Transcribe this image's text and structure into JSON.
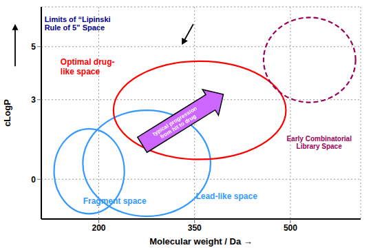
{
  "chart_data": {
    "type": "ellipse",
    "xlabel": "Molecular weight / Da   →",
    "ylabel": "cLogP",
    "xlim": [
      110,
      610
    ],
    "ylim": [
      -1.5,
      6.5
    ],
    "xticks": [
      200,
      350,
      500
    ],
    "yticks": [
      0,
      3,
      5
    ],
    "grid": true,
    "ellipses": [
      {
        "cx": 185,
        "cy": 0.3,
        "rx": 55,
        "ry": 1.6,
        "angle": 0,
        "color": "#3399ff",
        "line_style": "solid"
      },
      {
        "cx": 275,
        "cy": 0.6,
        "rx": 100,
        "ry": 2.0,
        "angle": 0,
        "color": "#3399ff",
        "line_style": "solid"
      },
      {
        "cx": 358,
        "cy": 2.6,
        "rx": 135,
        "ry": 1.85,
        "angle": 0,
        "color": "red",
        "line_style": "solid"
      },
      {
        "cx": 530,
        "cy": 4.5,
        "rx": 72,
        "ry": 1.6,
        "angle": 0,
        "color": "#990055",
        "line_style": "dashed"
      }
    ],
    "arrows": [
      {
        "type": "block_arrow",
        "x_start": 268,
        "y_start": 1.3,
        "x_end": 395,
        "y_end": 3.2,
        "color": "#cc66ff",
        "text": "typical progression\nfrom hit to drug"
      },
      {
        "type": "arrow",
        "x_start": 348,
        "y_start": 5.85,
        "x_end": 330,
        "y_end": 5.07,
        "color": "black"
      }
    ],
    "annotations": [
      {
        "text": "Limits of “Lipinski\nRule of 5” Space",
        "color": "#00008b"
      },
      {
        "text": "Optimal drug-\nlike space",
        "color": "red"
      },
      {
        "text": "Fragment space",
        "color": "#3399ff"
      },
      {
        "text": "Lead-like space",
        "color": "#3399ff"
      },
      {
        "text": "Early Combinatorial\nLibrary Space",
        "color": "#990055"
      }
    ]
  }
}
